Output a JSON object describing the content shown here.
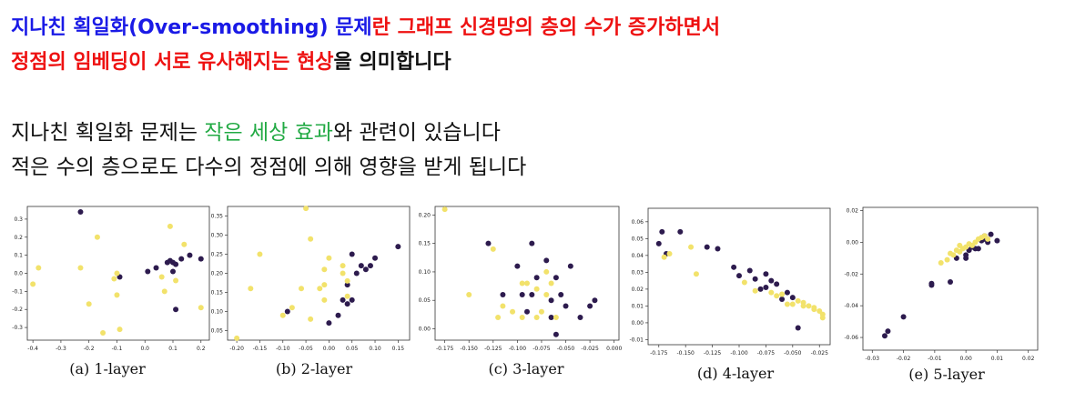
{
  "heading": {
    "line1": [
      {
        "text": "지나친 획일화(Over-smoothing) 문제",
        "color": "#1a1ae6"
      },
      {
        "text": "란 ",
        "color": "#ee1111"
      },
      {
        "text": "그래프 신경망의 층의 수가 증가하면서",
        "color": "#ee1111"
      }
    ],
    "line2": [
      {
        "text": "정점의 임베딩이 서로 유사해지는 현상",
        "color": "#ee1111"
      },
      {
        "text": "을 의미합니다",
        "color": "#111111"
      }
    ]
  },
  "body": {
    "line3": [
      {
        "text": "지나친 획일화 문제는 ",
        "color": "#111111"
      },
      {
        "text": "작은 세상 효과",
        "color": "#22aa44"
      },
      {
        "text": "와 관련이 있습니다",
        "color": "#111111"
      }
    ],
    "line4": "적은 수의 층으로도 다수의 정점에 의해 영향을 받게 됩니다"
  },
  "colors": {
    "class_a": "#2d1b4e",
    "class_b": "#f2e26b",
    "axes": "#333333"
  },
  "chart_data": [
    {
      "type": "scatter",
      "caption": "(a) 1-layer",
      "xlim": [
        -0.42,
        0.23
      ],
      "ylim": [
        -0.37,
        0.37
      ],
      "xticks": [
        "-0.4",
        "-0.3",
        "-0.2",
        "-0.1",
        "0.0",
        "0.1",
        "0.2"
      ],
      "xtick_vals": [
        -0.4,
        -0.3,
        -0.2,
        -0.1,
        0.0,
        0.1,
        0.2
      ],
      "yticks": [
        "-0.3",
        "-0.2",
        "-0.1",
        "0.0",
        "0.1",
        "0.2",
        "0.3"
      ],
      "ytick_vals": [
        -0.3,
        -0.2,
        -0.1,
        0.0,
        0.1,
        0.2,
        0.3
      ],
      "series": [
        {
          "class": "dark",
          "points": [
            [
              -0.23,
              0.34
            ],
            [
              -0.09,
              -0.02
            ],
            [
              0.01,
              0.01
            ],
            [
              0.04,
              0.03
            ],
            [
              0.08,
              0.06
            ],
            [
              0.09,
              0.07
            ],
            [
              0.1,
              0.01
            ],
            [
              0.1,
              0.06
            ],
            [
              0.13,
              0.08
            ],
            [
              0.16,
              0.1
            ],
            [
              0.2,
              0.08
            ],
            [
              0.11,
              0.05
            ],
            [
              0.11,
              -0.2
            ]
          ]
        },
        {
          "class": "light",
          "points": [
            [
              -0.38,
              0.03
            ],
            [
              -0.4,
              -0.06
            ],
            [
              -0.17,
              0.2
            ],
            [
              -0.23,
              0.03
            ],
            [
              -0.2,
              -0.17
            ],
            [
              -0.15,
              -0.33
            ],
            [
              -0.11,
              -0.03
            ],
            [
              -0.1,
              -0.12
            ],
            [
              -0.09,
              -0.31
            ],
            [
              -0.1,
              0.0
            ],
            [
              0.07,
              -0.1
            ],
            [
              0.09,
              0.26
            ],
            [
              0.11,
              -0.04
            ],
            [
              0.14,
              0.16
            ],
            [
              0.2,
              -0.19
            ],
            [
              0.06,
              -0.02
            ]
          ]
        }
      ]
    },
    {
      "type": "scatter",
      "caption": "(b) 2-layer",
      "xlim": [
        -0.22,
        0.175
      ],
      "ylim": [
        0.025,
        0.375
      ],
      "xticks": [
        "-0.20",
        "-0.15",
        "-0.10",
        "-0.05",
        "0.00",
        "0.05",
        "0.10",
        "0.15"
      ],
      "xtick_vals": [
        -0.2,
        -0.15,
        -0.1,
        -0.05,
        0.0,
        0.05,
        0.1,
        0.15
      ],
      "yticks": [
        "0.05",
        "0.10",
        "0.15",
        "0.20",
        "0.25",
        "0.30",
        "0.35"
      ],
      "ytick_vals": [
        0.05,
        0.1,
        0.15,
        0.2,
        0.25,
        0.3,
        0.35
      ],
      "series": [
        {
          "class": "dark",
          "points": [
            [
              0.05,
              0.25
            ],
            [
              0.07,
              0.22
            ],
            [
              0.08,
              0.21
            ],
            [
              0.09,
              0.22
            ],
            [
              0.1,
              0.24
            ],
            [
              0.15,
              0.27
            ],
            [
              0.06,
              0.2
            ],
            [
              0.04,
              0.17
            ],
            [
              0.03,
              0.13
            ],
            [
              0.04,
              0.12
            ],
            [
              0.05,
              0.13
            ],
            [
              0.02,
              0.09
            ],
            [
              0.0,
              0.07
            ],
            [
              -0.09,
              0.1
            ]
          ]
        },
        {
          "class": "light",
          "points": [
            [
              -0.15,
              0.25
            ],
            [
              -0.2,
              0.03
            ],
            [
              -0.17,
              0.16
            ],
            [
              -0.1,
              0.09
            ],
            [
              -0.05,
              0.37
            ],
            [
              -0.04,
              0.29
            ],
            [
              0.0,
              0.24
            ],
            [
              -0.01,
              0.21
            ],
            [
              -0.01,
              0.17
            ],
            [
              -0.02,
              0.16
            ],
            [
              -0.01,
              0.13
            ],
            [
              0.03,
              0.22
            ],
            [
              0.03,
              0.2
            ],
            [
              0.04,
              0.18
            ],
            [
              -0.06,
              0.16
            ],
            [
              -0.08,
              0.11
            ],
            [
              -0.04,
              0.08
            ],
            [
              0.04,
              0.14
            ]
          ]
        }
      ]
    },
    {
      "type": "scatter",
      "caption": "(c) 3-layer",
      "xlim": [
        -0.185,
        0.005
      ],
      "ylim": [
        -0.02,
        0.215
      ],
      "xticks": [
        "-0.175",
        "-0.150",
        "-0.125",
        "-0.100",
        "-0.075",
        "-0.050",
        "-0.025",
        "0.000"
      ],
      "xtick_vals": [
        -0.175,
        -0.15,
        -0.125,
        -0.1,
        -0.075,
        -0.05,
        -0.025,
        0.0
      ],
      "yticks": [
        "0.00",
        "0.05",
        "0.10",
        "0.15",
        "0.20"
      ],
      "ytick_vals": [
        0.0,
        0.05,
        0.1,
        0.15,
        0.2
      ],
      "series": [
        {
          "class": "dark",
          "points": [
            [
              -0.13,
              0.15
            ],
            [
              -0.085,
              0.15
            ],
            [
              -0.07,
              0.12
            ],
            [
              -0.045,
              0.11
            ],
            [
              -0.06,
              0.09
            ],
            [
              -0.08,
              0.09
            ],
            [
              -0.1,
              0.11
            ],
            [
              -0.115,
              0.06
            ],
            [
              -0.085,
              0.06
            ],
            [
              -0.065,
              0.05
            ],
            [
              -0.055,
              0.06
            ],
            [
              -0.05,
              0.04
            ],
            [
              -0.025,
              0.04
            ],
            [
              -0.02,
              0.05
            ],
            [
              -0.035,
              0.02
            ],
            [
              -0.065,
              0.02
            ],
            [
              -0.09,
              0.03
            ],
            [
              -0.095,
              0.06
            ],
            [
              -0.06,
              -0.01
            ]
          ]
        },
        {
          "class": "light",
          "points": [
            [
              -0.175,
              0.21
            ],
            [
              -0.125,
              0.14
            ],
            [
              -0.115,
              0.04
            ],
            [
              -0.12,
              0.02
            ],
            [
              -0.105,
              0.03
            ],
            [
              -0.09,
              0.08
            ],
            [
              -0.08,
              0.07
            ],
            [
              -0.095,
              0.08
            ],
            [
              -0.07,
              0.1
            ],
            [
              -0.07,
              0.06
            ],
            [
              -0.075,
              0.03
            ],
            [
              -0.15,
              0.06
            ],
            [
              -0.095,
              0.02
            ],
            [
              -0.06,
              0.02
            ],
            [
              -0.08,
              0.02
            ],
            [
              -0.065,
              0.08
            ]
          ]
        }
      ]
    },
    {
      "type": "scatter",
      "caption": "(d) 4-layer",
      "xlim": [
        -0.185,
        -0.015
      ],
      "ylim": [
        -0.013,
        0.068
      ],
      "xticks": [
        "-0.175",
        "-0.150",
        "-0.125",
        "-0.100",
        "-0.075",
        "-0.050",
        "-0.025"
      ],
      "xtick_vals": [
        -0.175,
        -0.15,
        -0.125,
        -0.1,
        -0.075,
        -0.05,
        -0.025
      ],
      "yticks": [
        "-0.01",
        "0.00",
        "0.01",
        "0.02",
        "0.03",
        "0.04",
        "0.05",
        "0.06"
      ],
      "ytick_vals": [
        -0.01,
        0.0,
        0.01,
        0.02,
        0.03,
        0.04,
        0.05,
        0.06
      ],
      "series": [
        {
          "class": "dark",
          "points": [
            [
              -0.172,
              0.054
            ],
            [
              -0.175,
              0.047
            ],
            [
              -0.168,
              0.041
            ],
            [
              -0.155,
              0.054
            ],
            [
              -0.13,
              0.045
            ],
            [
              -0.12,
              0.044
            ],
            [
              -0.105,
              0.033
            ],
            [
              -0.1,
              0.028
            ],
            [
              -0.09,
              0.031
            ],
            [
              -0.085,
              0.026
            ],
            [
              -0.075,
              0.029
            ],
            [
              -0.07,
              0.025
            ],
            [
              -0.075,
              0.021
            ],
            [
              -0.065,
              0.023
            ],
            [
              -0.055,
              0.018
            ],
            [
              -0.06,
              0.014
            ],
            [
              -0.05,
              0.015
            ],
            [
              -0.045,
              -0.003
            ],
            [
              -0.08,
              0.02
            ]
          ]
        },
        {
          "class": "light",
          "points": [
            [
              -0.17,
              0.039
            ],
            [
              -0.165,
              0.041
            ],
            [
              -0.145,
              0.045
            ],
            [
              -0.14,
              0.029
            ],
            [
              -0.095,
              0.024
            ],
            [
              -0.085,
              0.019
            ],
            [
              -0.07,
              0.018
            ],
            [
              -0.065,
              0.016
            ],
            [
              -0.06,
              0.017
            ],
            [
              -0.055,
              0.011
            ],
            [
              -0.05,
              0.011
            ],
            [
              -0.045,
              0.013
            ],
            [
              -0.04,
              0.012
            ],
            [
              -0.035,
              0.01
            ],
            [
              -0.03,
              0.008
            ],
            [
              -0.025,
              0.007
            ],
            [
              -0.022,
              0.005
            ],
            [
              -0.022,
              0.003
            ],
            [
              -0.03,
              0.009
            ],
            [
              -0.04,
              0.01
            ]
          ]
        }
      ]
    },
    {
      "type": "scatter",
      "caption": "(e) 5-layer",
      "xlim": [
        -0.033,
        0.023
      ],
      "ylim": [
        -0.068,
        0.022
      ],
      "xticks": [
        "-0.03",
        "-0.02",
        "-0.01",
        "0.00",
        "0.01",
        "0.02"
      ],
      "xtick_vals": [
        -0.03,
        -0.02,
        -0.01,
        0.0,
        0.01,
        0.02
      ],
      "yticks": [
        "-0.06",
        "-0.04",
        "-0.02",
        "0.00",
        "0.02"
      ],
      "ytick_vals": [
        -0.06,
        -0.04,
        -0.02,
        0.0,
        0.02
      ],
      "series": [
        {
          "class": "dark",
          "points": [
            [
              -0.026,
              -0.059
            ],
            [
              -0.025,
              -0.056
            ],
            [
              -0.02,
              -0.047
            ],
            [
              -0.011,
              -0.027
            ],
            [
              -0.011,
              -0.026
            ],
            [
              -0.005,
              -0.025
            ],
            [
              -0.003,
              -0.01
            ],
            [
              0.0,
              -0.008
            ],
            [
              0.0,
              -0.01
            ],
            [
              0.001,
              -0.005
            ],
            [
              0.002,
              -0.003
            ],
            [
              0.003,
              -0.004
            ],
            [
              0.005,
              0.001
            ],
            [
              0.006,
              0.002
            ],
            [
              0.008,
              0.005
            ],
            [
              0.01,
              0.001
            ],
            [
              0.006,
              0.004
            ],
            [
              0.007,
              0.0
            ],
            [
              0.004,
              -0.004
            ]
          ]
        },
        {
          "class": "light",
          "points": [
            [
              -0.008,
              -0.013
            ],
            [
              -0.006,
              -0.011
            ],
            [
              -0.004,
              -0.008
            ],
            [
              -0.005,
              -0.007
            ],
            [
              -0.003,
              -0.005
            ],
            [
              -0.002,
              -0.006
            ],
            [
              -0.001,
              -0.004
            ],
            [
              0.0,
              -0.003
            ],
            [
              0.002,
              -0.002
            ],
            [
              0.003,
              0.0
            ],
            [
              0.005,
              0.003
            ],
            [
              0.006,
              0.004
            ],
            [
              0.001,
              -0.001
            ],
            [
              0.004,
              0.002
            ],
            [
              -0.002,
              -0.002
            ],
            [
              0.007,
              0.002
            ]
          ]
        }
      ]
    }
  ]
}
